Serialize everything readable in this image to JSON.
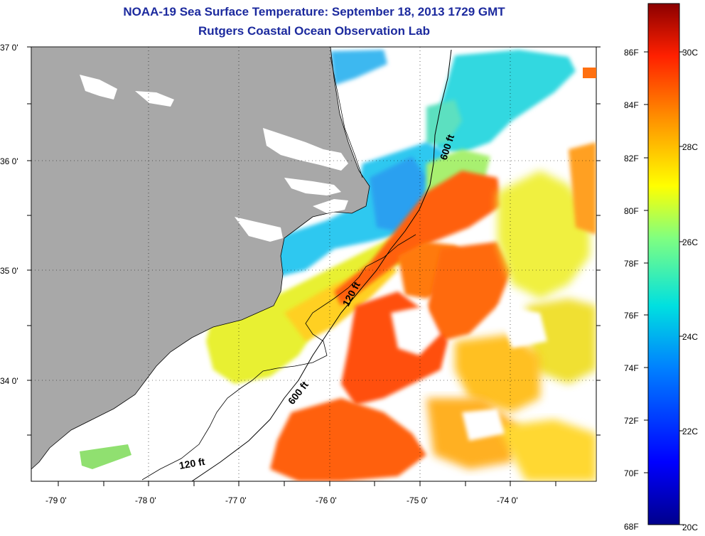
{
  "title_line1": "NOAA-19 Sea Surface Temperature:  September 18, 2013 1729 GMT",
  "title_line2": "Rutgers Coastal Ocean Observation Lab",
  "axes": {
    "lat_labels": [
      "37 0'",
      "36 0'",
      "35 0'",
      "34 0'"
    ],
    "lon_labels": [
      "-79 0'",
      "-78 0'",
      "-77 0'",
      "-76 0'",
      "-75 0'",
      "-74 0'"
    ]
  },
  "contours": {
    "label_600_north": "600 ft",
    "label_120_mid": "120 ft",
    "label_600_south": "600 ft",
    "label_120_south": "120 ft"
  },
  "colorbar": {
    "fahrenheit_labels": [
      "86F",
      "84F",
      "82F",
      "80F",
      "78F",
      "76F",
      "74F",
      "72F",
      "70F",
      "68F"
    ],
    "celsius_labels": [
      "30C",
      "28C",
      "26C",
      "24C",
      "22C",
      "20C"
    ]
  },
  "colors": {
    "land": "#a8a8a8",
    "title": "#1c2a9e",
    "cold": "#00008c",
    "warm": "#8b0000"
  }
}
